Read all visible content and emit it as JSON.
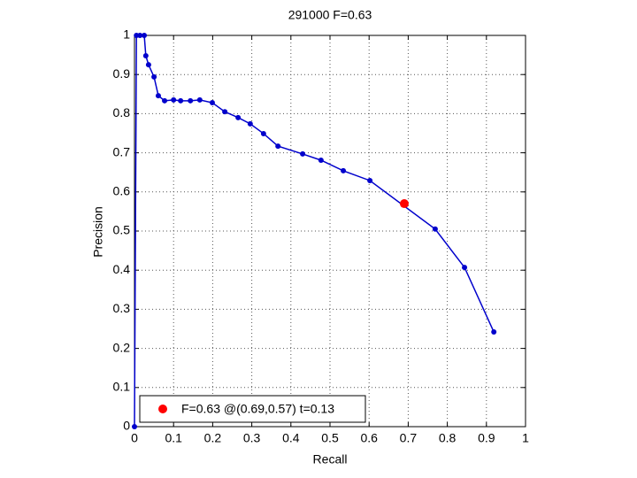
{
  "chart_data": {
    "type": "line",
    "title": "291000 F=0.63",
    "xlabel": "Recall",
    "ylabel": "Precision",
    "xlim": [
      0,
      1
    ],
    "ylim": [
      0,
      1
    ],
    "xticks": [
      0,
      0.1,
      0.2,
      0.3,
      0.4,
      0.5,
      0.6,
      0.7,
      0.8,
      0.9,
      1
    ],
    "yticks": [
      0,
      0.1,
      0.2,
      0.3,
      0.4,
      0.5,
      0.6,
      0.7,
      0.8,
      0.9,
      1
    ],
    "grid": true,
    "legend": "lower left",
    "series": [
      {
        "color": "#0000cc",
        "x": [
          0,
          0.005,
          0.014,
          0.025,
          0.029,
          0.036,
          0.05,
          0.061,
          0.077,
          0.1,
          0.118,
          0.143,
          0.167,
          0.199,
          0.231,
          0.265,
          0.296,
          0.33,
          0.367,
          0.43,
          0.477,
          0.534,
          0.602,
          0.769,
          0.844,
          0.919
        ],
        "values": [
          0,
          1,
          1,
          1,
          0.948,
          0.925,
          0.894,
          0.846,
          0.833,
          0.835,
          0.833,
          0.833,
          0.835,
          0.828,
          0.805,
          0.79,
          0.774,
          0.749,
          0.717,
          0.697,
          0.681,
          0.654,
          0.629,
          0.505,
          0.407,
          0.242
        ]
      },
      {
        "name": "F=0.63 @(0.69,0.57) t=0.13",
        "color": "#ff0000",
        "x": [
          0.69
        ],
        "values": [
          0.57
        ]
      }
    ]
  }
}
